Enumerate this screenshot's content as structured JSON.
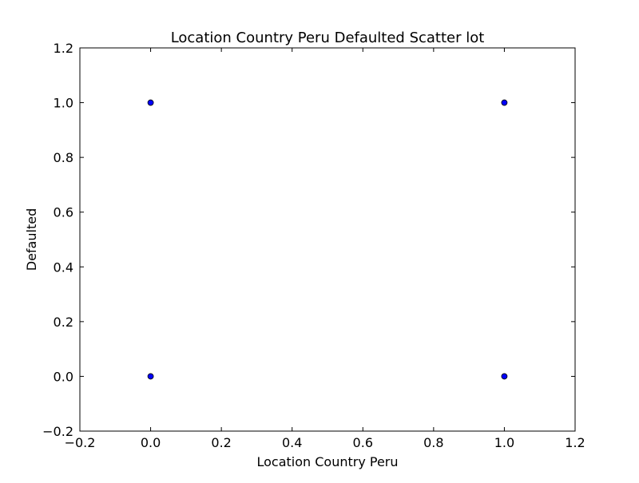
{
  "chart_data": {
    "type": "scatter",
    "title": "Location Country Peru Defaulted Scatter lot",
    "xlabel": "Location Country Peru",
    "ylabel": "Defaulted",
    "xlim": [
      -0.2,
      1.2
    ],
    "ylim": [
      -0.2,
      1.2
    ],
    "xticks": [
      -0.2,
      0.0,
      0.2,
      0.4,
      0.6,
      0.8,
      1.0,
      1.2
    ],
    "yticks": [
      -0.2,
      0.0,
      0.2,
      0.4,
      0.6,
      0.8,
      1.0,
      1.2
    ],
    "xtick_labels": [
      "−0.2",
      "0.0",
      "0.2",
      "0.4",
      "0.6",
      "0.8",
      "1.0",
      "1.2"
    ],
    "ytick_labels": [
      "−0.2",
      "0.0",
      "0.2",
      "0.4",
      "0.6",
      "0.8",
      "1.0",
      "1.2"
    ],
    "grid": false,
    "marker_color": "#0000ff",
    "points": [
      {
        "x": 0,
        "y": 1
      },
      {
        "x": 1,
        "y": 1
      },
      {
        "x": 0,
        "y": 0
      },
      {
        "x": 1,
        "y": 0
      }
    ]
  }
}
